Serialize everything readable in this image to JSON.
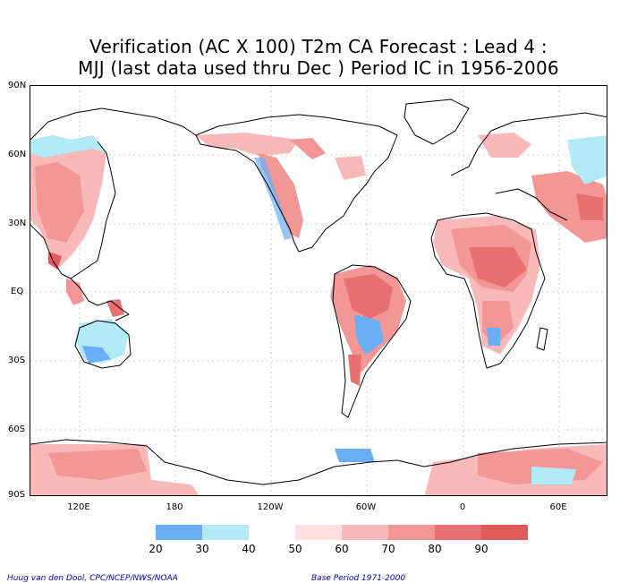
{
  "title_line1": "Verification (AC X 100) T2m CA Forecast : Lead 4 :",
  "title_line2": "MJJ (last data used thru Dec ) Period IC in 1956-2006",
  "lat_labels": [
    "90N",
    "60N",
    "30N",
    "EQ",
    "30S",
    "60S",
    "90S"
  ],
  "lon_labels": [
    "120E",
    "180",
    "120W",
    "60W",
    "0",
    "60E"
  ],
  "colorbar": {
    "ticks": [
      "20",
      "30",
      "40",
      "50",
      "60",
      "70",
      "80",
      "90"
    ],
    "colors": [
      "#6aaff5",
      "#b2eaf8",
      "#ffffff",
      "#ffe0e0",
      "#f9b9b9",
      "#f29696",
      "#e97070",
      "#e15a5a",
      "#aaaaaa"
    ]
  },
  "credit_left": "Huug van den Dool, CPC/NCEP/NWS/NOAA",
  "credit_right": "Base Period 1971-2000",
  "colors": {
    "land_line": "#000000",
    "grid": "#999999"
  }
}
